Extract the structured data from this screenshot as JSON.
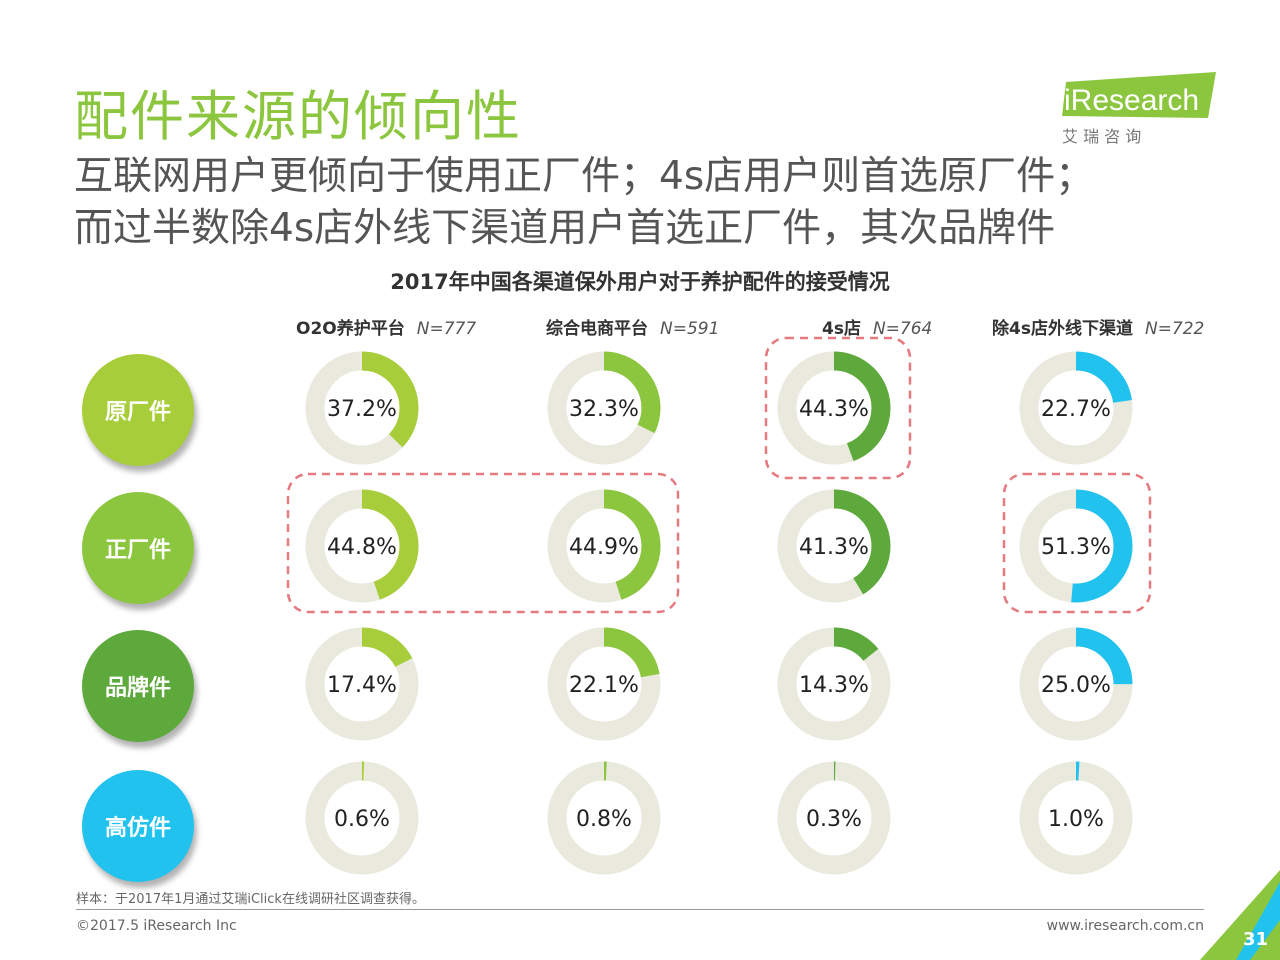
{
  "header": {
    "title": "配件来源的倾向性",
    "subtitle_line1": "互联网用户更倾向于使用正厂件；4s店用户则首选原厂件；",
    "subtitle_line2": "而过半数除4s店外线下渠道用户首选正厂件，其次品牌件"
  },
  "logo": {
    "brand": "iResearch",
    "cn": "艾 瑞 咨 询"
  },
  "chart_data": {
    "type": "donut-grid",
    "title": "2017年中国各渠道保外用户对于养护配件的接受情况",
    "columns": [
      {
        "name": "O2O养护平台",
        "n": "N=777"
      },
      {
        "name": "综合电商平台",
        "n": "N=591"
      },
      {
        "name": "4s店",
        "n": "N=764"
      },
      {
        "name": "除4s店外线下渠道",
        "n": "N=722"
      }
    ],
    "rows": [
      {
        "name": "原厂件",
        "color": "#a8cd3a",
        "values": [
          37.2,
          32.3,
          44.3,
          22.7
        ],
        "labels": [
          "37.2%",
          "32.3%",
          "44.3%",
          "22.7%"
        ]
      },
      {
        "name": "正厂件",
        "color": "#8cc63f",
        "values": [
          44.8,
          44.9,
          41.3,
          51.3
        ],
        "labels": [
          "44.8%",
          "44.9%",
          "41.3%",
          "51.3%"
        ]
      },
      {
        "name": "品牌件",
        "color": "#5da93c",
        "values": [
          17.4,
          22.1,
          14.3,
          25.0
        ],
        "labels": [
          "17.4%",
          "22.1%",
          "14.3%",
          "25.0%"
        ]
      },
      {
        "name": "高仿件",
        "color": "#22c2ee",
        "values": [
          0.6,
          0.8,
          0.3,
          1.0
        ],
        "labels": [
          "0.6%",
          "0.8%",
          "0.3%",
          "1.0%"
        ]
      }
    ],
    "segment_colors": {
      "o2o": "#a8cd3a",
      "ecommerce": "#8cc63f",
      "4s": "#5da93c",
      "offline": "#22c2ee",
      "track": "#e9e9dd"
    },
    "highlights": [
      {
        "rows": [
          0
        ],
        "cols": [
          2
        ]
      },
      {
        "rows": [
          1
        ],
        "cols": [
          0,
          1
        ]
      },
      {
        "rows": [
          1
        ],
        "cols": [
          3
        ]
      }
    ]
  },
  "footer": {
    "note": "样本：于2017年1月通过艾瑞iClick在线调研社区调查获得。",
    "copyright": "©2017.5 iResearch Inc",
    "website": "www.iresearch.com.cn",
    "page": "31"
  }
}
